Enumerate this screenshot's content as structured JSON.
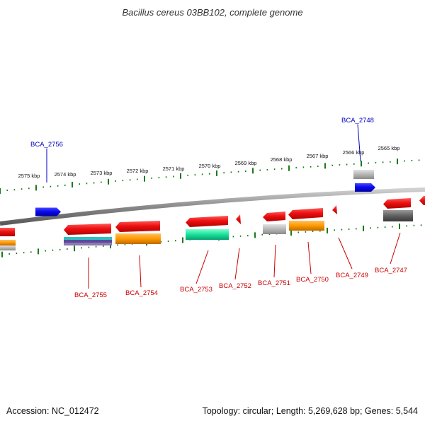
{
  "header": {
    "title": "Bacillus cereus 03BB102, complete genome"
  },
  "footer": {
    "accession": "Accession: NC_012472",
    "info": "Topology: circular; Length: 5,269,628 bp; Genes: 5,544"
  },
  "colors": {
    "forward_gene": "#0a0aee",
    "reverse_gene": "#ee0a0a",
    "tick": "#1a7a1a",
    "label_forward": "#0000c0",
    "label_reverse": "#cc0000",
    "backbone": "#8a8a8a",
    "cds_cyan": "#30c0c0",
    "cds_orange": "#ff9900",
    "cds_green": "#19e09a",
    "cds_gray": "#b5b5b5",
    "cds_dark": "#606060",
    "cds_purple": "#5a4a9a"
  },
  "scale_labels": [
    "2575 kbp",
    "2574 kbp",
    "2573 kbp",
    "2572 kbp",
    "2571 kbp",
    "2570 kbp",
    "2569 kbp",
    "2568 kbp",
    "2567 kbp",
    "2566 kbp",
    "2565 kbp"
  ],
  "gene_labels": {
    "forward": [
      "BCA_2756",
      "BCA_2748"
    ],
    "reverse": [
      "BCA_2755",
      "BCA_2754",
      "BCA_2753",
      "BCA_2752",
      "BCA_2751",
      "BCA_2750",
      "BCA_2749",
      "BCA_2747"
    ]
  }
}
